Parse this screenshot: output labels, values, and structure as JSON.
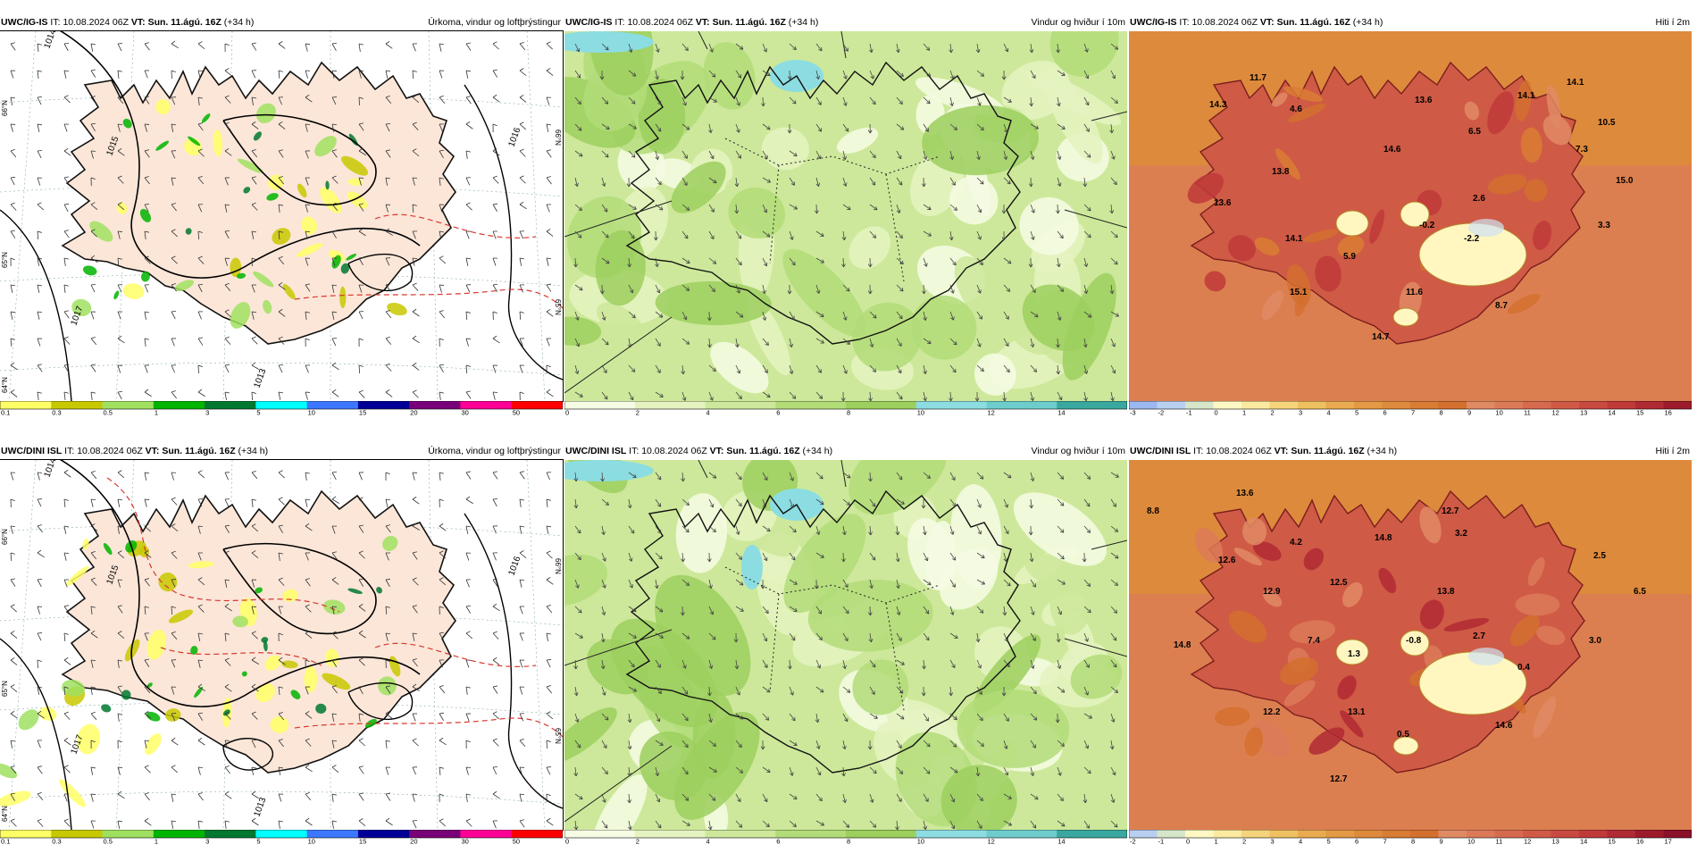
{
  "rows": [
    {
      "model": "UWC/IG-IS",
      "init_label": "IT:",
      "init": "10.08.2024 06Z",
      "valid_label": "VT:",
      "valid": "Sun. 11.ágú. 16Z",
      "lead": "(+34 h)"
    },
    {
      "model": "UWC/DINI ISL",
      "init_label": "IT:",
      "init": "10.08.2024 06Z",
      "valid_label": "VT:",
      "valid": "Sun. 11.ágú. 16Z",
      "lead": "(+34 h)"
    }
  ],
  "panel_titles": [
    "Úrkoma, vindur og loftþrýstingur",
    "Vindur og hviður í 10m",
    "Hiti í 2m"
  ],
  "precip_scale": {
    "labels": [
      "0.1",
      "0.3",
      "0.5",
      "1",
      "3",
      "5",
      "10",
      "15",
      "20",
      "30",
      "50"
    ],
    "colors": [
      "#ffff66",
      "#c8c800",
      "#a0e060",
      "#00b400",
      "#007830",
      "#00ffff",
      "#3c78ff",
      "#000096",
      "#780078",
      "#ff0096",
      "#ff0000"
    ]
  },
  "wind_scale": {
    "labels": [
      "0",
      "2",
      "4",
      "6",
      "8",
      "10",
      "12",
      "14"
    ],
    "colors": [
      "#f6fbe4",
      "#e4f3c0",
      "#cde89a",
      "#b2dc78",
      "#9ccf5e",
      "#8cdde2",
      "#6ecdcc",
      "#3aa89f"
    ]
  },
  "temp_scale_1": {
    "labels": [
      "-3",
      "-2",
      "-1",
      "0",
      "1",
      "2",
      "3",
      "4",
      "5",
      "6",
      "7",
      "8",
      "9",
      "10",
      "11",
      "12",
      "13",
      "14",
      "15",
      "16"
    ],
    "colors": [
      "#9bb8f0",
      "#b8cff0",
      "#d6e6c8",
      "#fff8c4",
      "#fbeaa0",
      "#f5d47c",
      "#efc060",
      "#eaab50",
      "#e49944",
      "#de8a3c",
      "#d97c34",
      "#d4702f",
      "#e08a64",
      "#dc7a58",
      "#d66a4e",
      "#d05a46",
      "#c84a40",
      "#c03a3a",
      "#b02a34",
      "#9c1c2c"
    ]
  },
  "temp_scale_2": {
    "labels": [
      "-2",
      "-1",
      "0",
      "1",
      "2",
      "3",
      "4",
      "5",
      "6",
      "7",
      "8",
      "9",
      "10",
      "11",
      "12",
      "13",
      "14",
      "15",
      "16",
      "17"
    ],
    "colors": [
      "#b8cff0",
      "#d6e6c8",
      "#fff8c4",
      "#fbeaa0",
      "#f5d47c",
      "#efc060",
      "#eaab50",
      "#e49944",
      "#de8a3c",
      "#d97c34",
      "#d4702f",
      "#e08a64",
      "#dc7a58",
      "#d66a4e",
      "#d05a46",
      "#c84a40",
      "#c03a3a",
      "#b02a34",
      "#9c1c2c",
      "#8a1228"
    ]
  },
  "temp_labels_top": [
    "11.7",
    "4.6",
    "14.3",
    "13.6",
    "14.1",
    "14.1",
    "10.5",
    "6.5",
    "14.6",
    "7.3",
    "13.8",
    "15.0",
    "2.6",
    "13.6",
    "-0.2",
    "3.3",
    "14.1",
    "-2.2",
    "5.9",
    "15.1",
    "11.6",
    "8.7",
    "14.7"
  ],
  "temp_labels_bottom": [
    "13.6",
    "8.8",
    "12.7",
    "4.2",
    "14.8",
    "3.2",
    "12.6",
    "2.5",
    "12.5",
    "13.8",
    "12.9",
    "6.5",
    "2.7",
    "14.8",
    "7.4",
    "-0.8",
    "1.3",
    "3.0",
    "0.4",
    "12.2",
    "13.1",
    "14.6",
    "0.5",
    "12.7"
  ],
  "isobar_labels": [
    "1014",
    "1015",
    "1016",
    "1017",
    "1013"
  ],
  "lat_labels": [
    "66°N",
    "65°N",
    "64°N"
  ],
  "colors": {
    "land_precip": "#fbe6d8",
    "sea_precip": "#ffffff",
    "wind_base": "#cde89a",
    "temp_base": "#de8a3c",
    "temp_land": "#cf5a45",
    "glacier": "#fff6c0",
    "isobar": "#000000",
    "isotherm_dashed": "#d9382e",
    "coast": "#111111"
  }
}
